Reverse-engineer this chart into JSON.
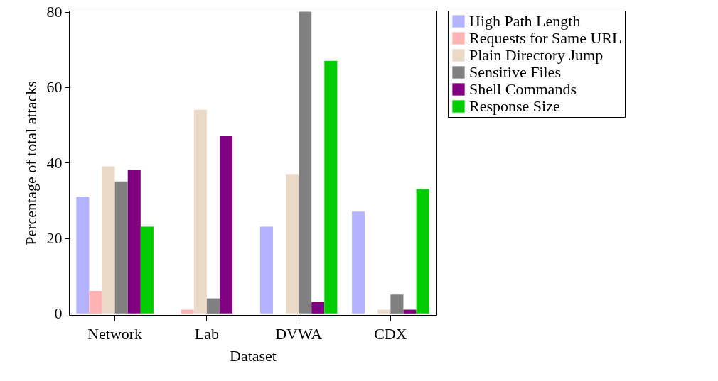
{
  "chart_data": {
    "type": "bar",
    "xlabel": "Dataset",
    "ylabel": "Percentage of total attacks",
    "categories": [
      "Network",
      "Lab",
      "DVWA",
      "CDX"
    ],
    "series": [
      {
        "name": "High Path Length",
        "color": "#b3b3ff",
        "values": [
          31,
          0,
          23,
          27
        ]
      },
      {
        "name": "Requests for Same URL",
        "color": "#ffb3b3",
        "values": [
          6,
          1,
          0,
          0
        ]
      },
      {
        "name": "Plain Directory Jump",
        "color": "#ead9c6",
        "values": [
          39,
          54,
          37,
          1
        ]
      },
      {
        "name": "Sensitive Files",
        "color": "#808080",
        "values": [
          35,
          4,
          80,
          5
        ]
      },
      {
        "name": "Shell Commands",
        "color": "#800080",
        "values": [
          38,
          47,
          3,
          1
        ]
      },
      {
        "name": "Response Size",
        "color": "#00cc00",
        "values": [
          23,
          0,
          67,
          33
        ]
      }
    ],
    "ylim": [
      -0.4,
      80.3
    ],
    "yticks": [
      0,
      20,
      40,
      60,
      80
    ],
    "legend": "top right",
    "grid": false
  }
}
